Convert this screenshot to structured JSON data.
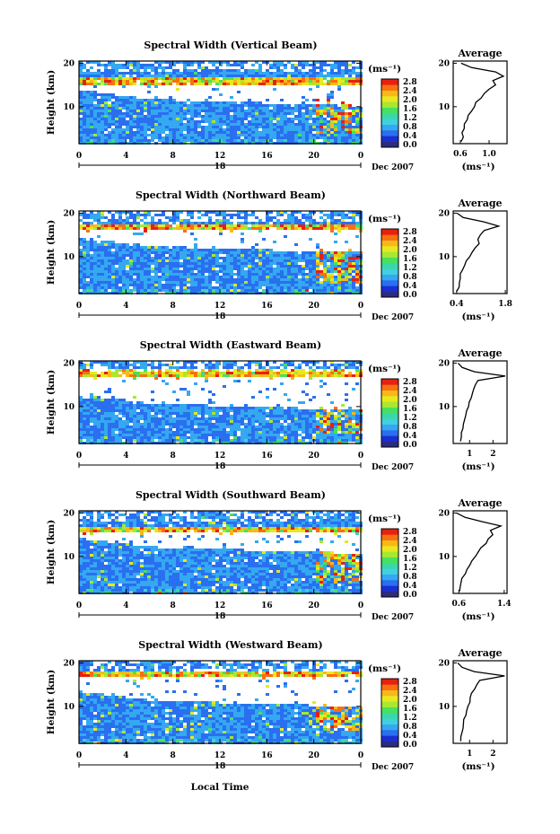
{
  "colorbar": {
    "unit": "(ms⁻¹)",
    "ticks": [
      "2.8",
      "2.4",
      "2.0",
      "1.6",
      "1.2",
      "0.8",
      "0.4",
      "0.0"
    ],
    "colors": [
      "#2b2b80",
      "#1a2fd0",
      "#2a6ff0",
      "#34a8f0",
      "#40d0e0",
      "#3ad8a8",
      "#48e060",
      "#a8e830",
      "#e8e820",
      "#f8b818",
      "#f87010",
      "#e82010"
    ]
  },
  "x_axis": {
    "ticks": [
      "0",
      "4",
      "8",
      "12",
      "16",
      "20",
      "0"
    ],
    "day_label": "18",
    "date_label": "Dec 2007",
    "label": "Local Time"
  },
  "y_axis": {
    "label": "Height (km)",
    "ticks": [
      "20",
      "10"
    ]
  },
  "avg_title": "Average",
  "avg_unit": "(ms⁻¹)",
  "chart_data": [
    {
      "type": "heatmap",
      "title": "Spectral Width (Vertical Beam)",
      "xlim": [
        0,
        24
      ],
      "ylim": [
        1.5,
        20.5
      ],
      "colorbar_range": [
        0.0,
        3.0
      ],
      "avg": {
        "xticks": [
          "0.6",
          "1.0"
        ],
        "xlim": [
          0.5,
          1.25
        ],
        "profile": [
          [
            0.62,
            2
          ],
          [
            0.64,
            3
          ],
          [
            0.63,
            4
          ],
          [
            0.66,
            5
          ],
          [
            0.65,
            6
          ],
          [
            0.7,
            7
          ],
          [
            0.72,
            8
          ],
          [
            0.75,
            9
          ],
          [
            0.8,
            10
          ],
          [
            0.82,
            11
          ],
          [
            0.88,
            12
          ],
          [
            0.92,
            13
          ],
          [
            1.0,
            14
          ],
          [
            1.1,
            15
          ],
          [
            1.05,
            16
          ],
          [
            1.2,
            17
          ],
          [
            1.1,
            18
          ],
          [
            0.75,
            19
          ],
          [
            0.6,
            20
          ]
        ]
      }
    },
    {
      "type": "heatmap",
      "title": "Spectral Width (Northward Beam)",
      "xlim": [
        0,
        24
      ],
      "ylim": [
        1.5,
        20.5
      ],
      "colorbar_range": [
        0.0,
        3.0
      ],
      "avg": {
        "xticks": [
          "0.4",
          "1.8"
        ],
        "xlim": [
          0.3,
          1.85
        ],
        "profile": [
          [
            0.42,
            2
          ],
          [
            0.45,
            3
          ],
          [
            0.5,
            4
          ],
          [
            0.48,
            5
          ],
          [
            0.52,
            6
          ],
          [
            0.58,
            7
          ],
          [
            0.62,
            8
          ],
          [
            0.68,
            9
          ],
          [
            0.78,
            10
          ],
          [
            0.85,
            11
          ],
          [
            0.95,
            12
          ],
          [
            1.05,
            13
          ],
          [
            1.0,
            14
          ],
          [
            1.1,
            15
          ],
          [
            1.2,
            16
          ],
          [
            1.6,
            17
          ],
          [
            1.2,
            18
          ],
          [
            0.6,
            19
          ],
          [
            0.4,
            20
          ]
        ]
      }
    },
    {
      "type": "heatmap",
      "title": "Spectral Width (Eastward Beam)",
      "xlim": [
        0,
        24
      ],
      "ylim": [
        1.5,
        20.5
      ],
      "colorbar_range": [
        0.0,
        3.0
      ],
      "avg": {
        "xticks": [
          "1",
          "2"
        ],
        "xlim": [
          0.3,
          2.6
        ],
        "profile": [
          [
            0.6,
            2
          ],
          [
            0.62,
            3
          ],
          [
            0.65,
            4
          ],
          [
            0.7,
            5
          ],
          [
            0.72,
            6
          ],
          [
            0.78,
            7
          ],
          [
            0.85,
            8
          ],
          [
            0.9,
            9
          ],
          [
            0.95,
            10
          ],
          [
            1.0,
            11
          ],
          [
            1.05,
            12
          ],
          [
            1.1,
            13
          ],
          [
            1.15,
            14
          ],
          [
            1.25,
            15
          ],
          [
            1.35,
            16
          ],
          [
            2.5,
            17
          ],
          [
            1.2,
            18
          ],
          [
            0.7,
            19
          ],
          [
            0.5,
            20
          ]
        ]
      }
    },
    {
      "type": "heatmap",
      "title": "Spectral Width (Southward Beam)",
      "xlim": [
        0,
        24
      ],
      "ylim": [
        1.5,
        20.5
      ],
      "colorbar_range": [
        0.0,
        3.0
      ],
      "avg": {
        "xticks": [
          "0.6",
          "1.4"
        ],
        "xlim": [
          0.5,
          1.45
        ],
        "profile": [
          [
            0.6,
            2
          ],
          [
            0.62,
            3
          ],
          [
            0.64,
            4
          ],
          [
            0.66,
            5
          ],
          [
            0.7,
            6
          ],
          [
            0.74,
            7
          ],
          [
            0.78,
            8
          ],
          [
            0.82,
            9
          ],
          [
            0.88,
            10
          ],
          [
            0.95,
            11
          ],
          [
            1.0,
            12
          ],
          [
            1.08,
            13
          ],
          [
            1.12,
            14
          ],
          [
            1.2,
            15
          ],
          [
            1.15,
            16
          ],
          [
            1.35,
            17
          ],
          [
            1.0,
            18
          ],
          [
            0.7,
            19
          ],
          [
            0.55,
            20
          ]
        ]
      }
    },
    {
      "type": "heatmap",
      "title": "Spectral Width (Westward Beam)",
      "xlim": [
        0,
        24
      ],
      "ylim": [
        1.5,
        20.5
      ],
      "colorbar_range": [
        0.0,
        3.0
      ],
      "avg": {
        "xticks": [
          "1",
          "2"
        ],
        "xlim": [
          0.3,
          2.6
        ],
        "profile": [
          [
            0.6,
            2
          ],
          [
            0.62,
            3
          ],
          [
            0.65,
            4
          ],
          [
            0.7,
            5
          ],
          [
            0.72,
            6
          ],
          [
            0.78,
            7
          ],
          [
            0.85,
            8
          ],
          [
            0.9,
            9
          ],
          [
            0.95,
            10
          ],
          [
            1.0,
            11
          ],
          [
            1.05,
            12
          ],
          [
            1.1,
            13
          ],
          [
            1.2,
            14
          ],
          [
            1.3,
            15
          ],
          [
            1.4,
            16
          ],
          [
            2.5,
            17
          ],
          [
            1.2,
            18
          ],
          [
            0.7,
            19
          ],
          [
            0.5,
            20
          ]
        ]
      }
    }
  ]
}
